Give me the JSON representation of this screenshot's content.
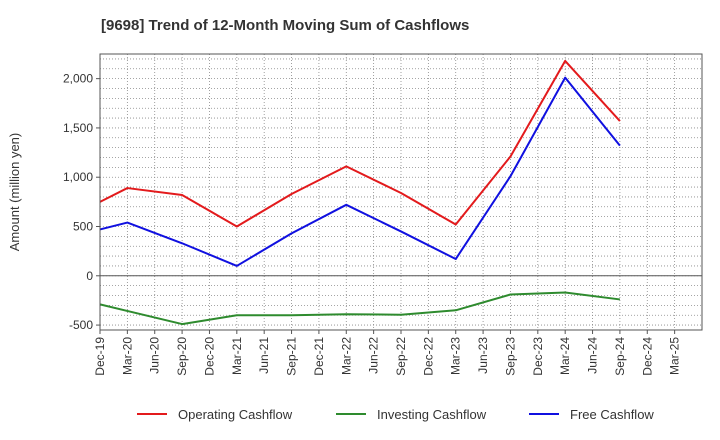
{
  "chart_data": {
    "type": "line",
    "title": "[9698]  Trend of 12-Month Moving Sum of Cashflows",
    "xlabel": "",
    "ylabel": "Amount (million yen)",
    "categories": [
      "Dec-19",
      "Mar-20",
      "Jun-20",
      "Sep-20",
      "Dec-20",
      "Mar-21",
      "Jun-21",
      "Sep-21",
      "Dec-21",
      "Mar-22",
      "Jun-22",
      "Sep-22",
      "Dec-22",
      "Mar-23",
      "Jun-23",
      "Sep-23",
      "Dec-23",
      "Mar-24",
      "Jun-24",
      "Sep-24",
      "Dec-24",
      "Mar-25"
    ],
    "ylim": [
      -550,
      2250
    ],
    "yticks": [
      -500,
      0,
      500,
      1000,
      1500,
      2000
    ],
    "ytick_labels": [
      "-500",
      "0",
      "500",
      "1,000",
      "1,500",
      "2,000"
    ],
    "grid": true,
    "legend_position": "bottom",
    "series": [
      {
        "name": "Operating Cashflow",
        "color": "#e31a1c",
        "values": [
          750,
          890,
          null,
          820,
          null,
          500,
          null,
          830,
          null,
          1110,
          null,
          840,
          null,
          520,
          null,
          1210,
          null,
          2180,
          null,
          1570,
          null,
          null
        ]
      },
      {
        "name": "Investing Cashflow",
        "color": "#2e8b2e",
        "values": [
          -290,
          null,
          null,
          -490,
          null,
          -400,
          null,
          -400,
          null,
          -390,
          null,
          -395,
          null,
          -350,
          null,
          -190,
          null,
          -170,
          null,
          -240,
          null,
          null
        ]
      },
      {
        "name": "Free Cashflow",
        "color": "#1010e0",
        "values": [
          470,
          540,
          null,
          330,
          null,
          100,
          null,
          430,
          null,
          720,
          null,
          450,
          null,
          170,
          null,
          1010,
          null,
          2010,
          null,
          1320,
          null,
          null
        ]
      }
    ]
  }
}
